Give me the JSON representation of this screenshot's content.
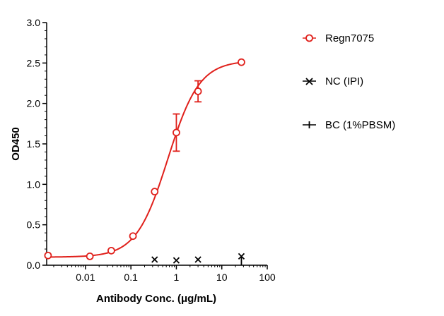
{
  "colors": {
    "regn": "#e0201b",
    "axis": "#000000",
    "nc": "#000000",
    "bc": "#000000"
  },
  "chart_data": {
    "type": "scatter",
    "title": "",
    "xlabel": "Antibody Conc. (μg/mL)",
    "ylabel": "OD450",
    "xscale": "log",
    "xlim": [
      0.0014,
      100
    ],
    "ylim": [
      0,
      3.0
    ],
    "xticks": [
      {
        "value": 0.01,
        "label": "0.01"
      },
      {
        "value": 0.1,
        "label": "0.1"
      },
      {
        "value": 1,
        "label": "1"
      },
      {
        "value": 10,
        "label": "10"
      },
      {
        "value": 100,
        "label": "100"
      }
    ],
    "yticks": [
      {
        "value": 0,
        "label": "0.0"
      },
      {
        "value": 0.5,
        "label": "0.5"
      },
      {
        "value": 1.0,
        "label": "1.0"
      },
      {
        "value": 1.5,
        "label": "1.5"
      },
      {
        "value": 2.0,
        "label": "2.0"
      },
      {
        "value": 2.5,
        "label": "2.5"
      },
      {
        "value": 3.0,
        "label": "3.0"
      }
    ],
    "grid": false,
    "legend_position": "right",
    "series": [
      {
        "name": "Regn7075",
        "marker": "open-circle",
        "color": "#e0201b",
        "fit": {
          "type": "4PL",
          "bottom": 0.1,
          "top": 2.53,
          "ec50": 0.65,
          "hill": 1.25
        },
        "points": [
          {
            "x": 0.0015,
            "y": 0.12
          },
          {
            "x": 0.0125,
            "y": 0.11
          },
          {
            "x": 0.037,
            "y": 0.18
          },
          {
            "x": 0.111,
            "y": 0.36
          },
          {
            "x": 0.333,
            "y": 0.91
          },
          {
            "x": 1.0,
            "y": 1.64,
            "err": 0.23
          },
          {
            "x": 3.0,
            "y": 2.15,
            "err": 0.13
          },
          {
            "x": 27.0,
            "y": 2.51
          }
        ]
      },
      {
        "name": "NC (IPI)",
        "marker": "x",
        "color": "#000000",
        "points": [
          {
            "x": 0.333,
            "y": 0.07
          },
          {
            "x": 1.0,
            "y": 0.06
          },
          {
            "x": 3.0,
            "y": 0.07
          },
          {
            "x": 27.0,
            "y": 0.11
          }
        ]
      },
      {
        "name": "BC (1%PBSM)",
        "marker": "plus",
        "color": "#000000",
        "points": [
          {
            "x": 27.0,
            "y": 0.05
          }
        ]
      }
    ]
  }
}
